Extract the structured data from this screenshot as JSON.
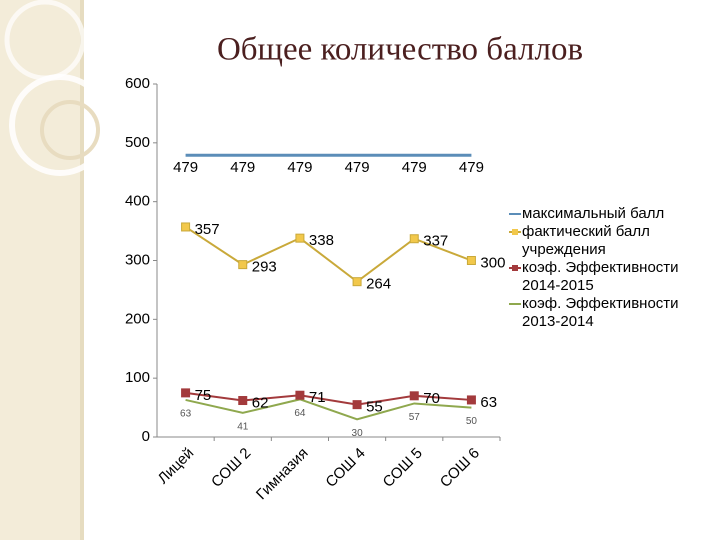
{
  "chart_data": {
    "type": "line",
    "title": "Общее количество баллов",
    "categories": [
      "Лицей",
      "СОШ 2",
      "Гимназия",
      "СОШ 4",
      "СОШ 5",
      "СОШ 6"
    ],
    "series": [
      {
        "name": "максимальный балл",
        "color": "#5b8db8",
        "values": [
          479,
          479,
          479,
          479,
          479,
          479
        ]
      },
      {
        "name": "фактический балл учреждения",
        "color": "#c9a93a",
        "marker": "square",
        "values": [
          357,
          293,
          338,
          264,
          337,
          300
        ]
      },
      {
        "name": "коэф. Эффективности 2014-2015",
        "color": "#a33a3c",
        "marker": "square",
        "values": [
          75,
          62,
          71,
          55,
          70,
          63
        ]
      },
      {
        "name": "коэф. Эффективности 2013-2014",
        "color": "#8fa84e",
        "values": [
          63,
          41,
          64,
          30,
          57,
          50
        ]
      }
    ],
    "ylim": [
      0,
      600
    ],
    "yticks": [
      0,
      100,
      200,
      300,
      400,
      500,
      600
    ],
    "grid": false,
    "legend": "right"
  }
}
